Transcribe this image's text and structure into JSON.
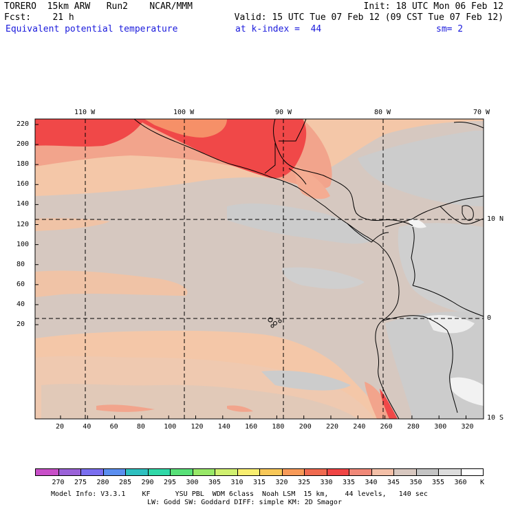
{
  "header": {
    "line1_left": "TORERO  15km ARW   Run2    NCAR/MMM",
    "line1_right": "Init: 18 UTC Mon 06 Feb 12",
    "line2_left": "Fcst:    21 h",
    "line2_right": "Valid: 15 UTC Tue 07 Feb 12 (09 CST Tue 07 Feb 12)",
    "field_name": "Equivalent potential temperature",
    "level": "at k-index =  44",
    "smoothing": "sm= 2"
  },
  "map": {
    "lon_labels": [
      "110 W",
      "100 W",
      "90 W",
      "80 W",
      "70 W"
    ],
    "lat_labels": [
      "10 N",
      "0",
      "10 S"
    ],
    "y_ticks": [
      "220",
      "200",
      "180",
      "160",
      "140",
      "120",
      "100",
      "80",
      "60",
      "40",
      "20"
    ],
    "x_ticks": [
      "20",
      "40",
      "60",
      "80",
      "100",
      "120",
      "140",
      "160",
      "180",
      "200",
      "220",
      "240",
      "260",
      "280",
      "300",
      "320"
    ]
  },
  "colorbar": {
    "labels": [
      "270",
      "275",
      "280",
      "285",
      "290",
      "295",
      "300",
      "305",
      "310",
      "315",
      "320",
      "325",
      "330",
      "335",
      "340",
      "345",
      "350",
      "355",
      "360"
    ],
    "unit": "K",
    "colors": [
      "#c84fc8",
      "#9a62d8",
      "#7a6ef0",
      "#5a8ef0",
      "#2ec0c0",
      "#30d8a8",
      "#58e078",
      "#98e868",
      "#d0f070",
      "#f8ee70",
      "#f8c858",
      "#f89a58",
      "#f06a50",
      "#f04545",
      "#f08878",
      "#f4c0a8",
      "#d8c8c0",
      "#c4c4c4",
      "#dddddd",
      "#ffffff"
    ]
  },
  "footer": {
    "line1": "Model Info: V3.3.1    KF      YSU PBL  WDM 6class  Noah LSM  15 km,    44 levels,   140 sec",
    "line2": "LW: Godd SW: Goddard DIFF: simple KM: 2D Smagor"
  }
}
